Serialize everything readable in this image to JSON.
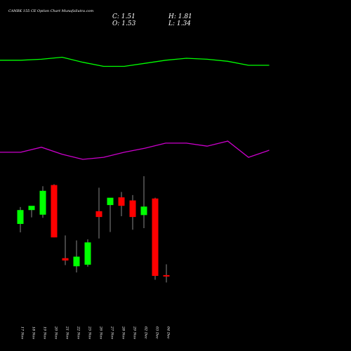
{
  "header": {
    "title": "CANBK 155 CE Option  Chart MunafaSutra.com",
    "close_label": "C: 1.51",
    "open_label": "O: 1.53",
    "high_label": "H: 1.81",
    "low_label": "L: 1.34"
  },
  "colors": {
    "background": "#000000",
    "up": "#00ff00",
    "down": "#ff0000",
    "wick": "#aaaaaa",
    "upper_line": "#00ff00",
    "lower_line": "#cc00cc",
    "text": "#ffffff"
  },
  "chart_data": {
    "type": "candlestick",
    "categories": [
      "17 Nov",
      "18 Nov",
      "19 Nov",
      "20 Nov",
      "21 Nov",
      "22 Nov",
      "25 Nov",
      "26 Nov",
      "27 Nov",
      "28 Nov",
      "29 Nov",
      "02 Dec",
      "03 Dec",
      "04 Dec"
    ],
    "ohlc": [
      {
        "open": 2.86,
        "high": 3.3,
        "low": 2.64,
        "close": 3.22
      },
      {
        "open": 3.22,
        "high": 3.3,
        "low": 3.03,
        "close": 3.33
      },
      {
        "open": 3.1,
        "high": 3.84,
        "low": 3.02,
        "close": 3.72
      },
      {
        "open": 3.87,
        "high": 3.89,
        "low": 2.51,
        "close": 2.51
      },
      {
        "open": 1.97,
        "high": 2.56,
        "low": 1.79,
        "close": 1.91
      },
      {
        "open": 1.76,
        "high": 2.43,
        "low": 1.6,
        "close": 2.01
      },
      {
        "open": 1.8,
        "high": 2.46,
        "low": 1.75,
        "close": 2.38
      },
      {
        "open": 3.19,
        "high": 3.8,
        "low": 2.48,
        "close": 3.04
      },
      {
        "open": 3.35,
        "high": 3.52,
        "low": 2.65,
        "close": 3.54
      },
      {
        "open": 3.55,
        "high": 3.69,
        "low": 3.06,
        "close": 3.33
      },
      {
        "open": 3.47,
        "high": 3.61,
        "low": 2.71,
        "close": 3.04
      },
      {
        "open": 3.09,
        "high": 4.1,
        "low": 2.75,
        "close": 3.31
      },
      {
        "open": 3.52,
        "high": 3.54,
        "low": 1.41,
        "close": 1.51
      },
      {
        "open": 1.53,
        "high": 1.81,
        "low": 1.34,
        "close": 1.51
      }
    ],
    "upper_line": [
      3.34,
      3.34,
      3.35,
      3.37,
      3.32,
      3.28,
      3.28,
      3.31,
      3.34,
      3.36,
      3.35,
      3.33,
      3.29,
      3.29
    ],
    "lower_line": [
      2.43,
      2.43,
      2.48,
      2.41,
      2.36,
      2.38,
      2.43,
      2.47,
      2.52,
      2.52,
      2.49,
      2.54,
      2.38,
      2.45
    ],
    "ylim": [
      1.2,
      4.3
    ]
  }
}
